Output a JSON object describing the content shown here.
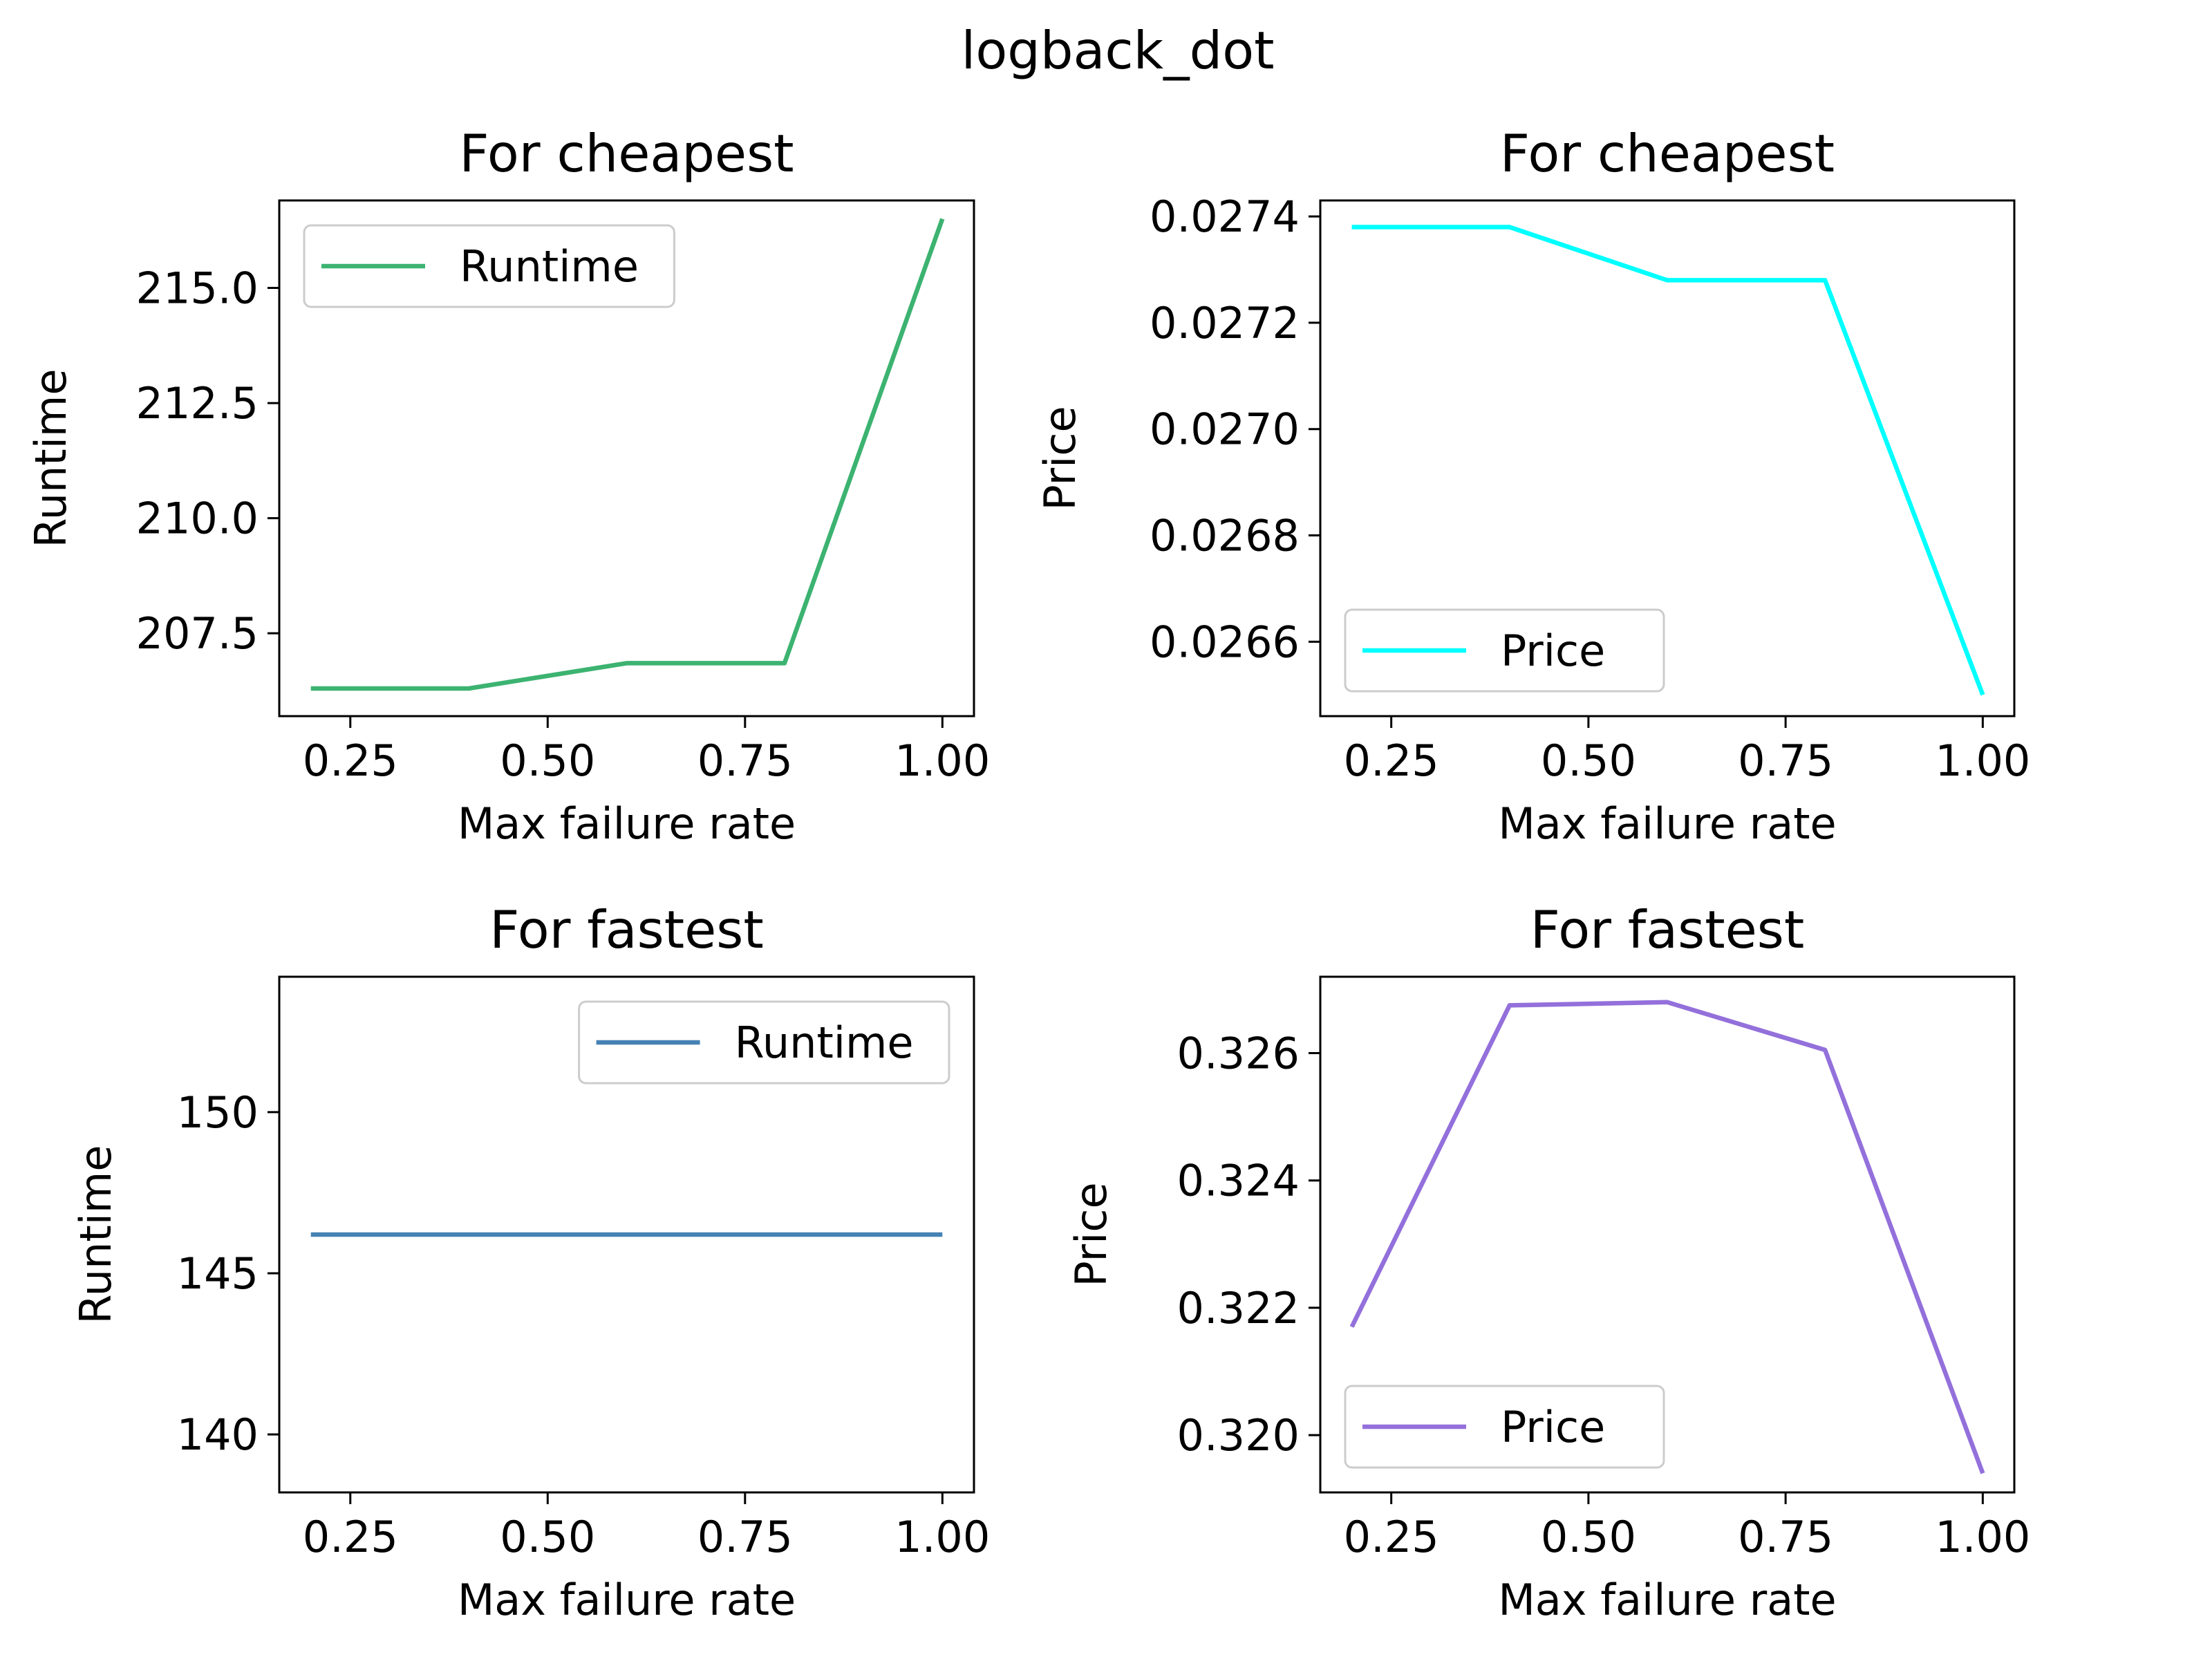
{
  "suptitle": "logback_dot",
  "chart_data": [
    {
      "type": "line",
      "title": "For cheapest",
      "xlabel": "Max failure rate",
      "ylabel": "Runtime",
      "xlim": [
        0.16,
        1.04
      ],
      "ylim": [
        205.7,
        216.9
      ],
      "xticks": [
        0.25,
        0.5,
        0.75,
        1.0
      ],
      "xtick_labels": [
        "0.25",
        "0.50",
        "0.75",
        "1.00"
      ],
      "yticks": [
        207.5,
        210.0,
        212.5,
        215.0
      ],
      "ytick_labels": [
        "207.5",
        "210.0",
        "212.5",
        "215.0"
      ],
      "legend_placement": "upper left",
      "series": [
        {
          "name": "Runtime",
          "color": "#3cb371",
          "x": [
            0.2,
            0.4,
            0.6,
            0.8,
            1.0
          ],
          "y": [
            206.3,
            206.3,
            206.85,
            206.85,
            216.5
          ]
        }
      ]
    },
    {
      "type": "line",
      "title": "For cheapest",
      "xlabel": "Max failure rate",
      "ylabel": "Price",
      "xlim": [
        0.16,
        1.04
      ],
      "ylim": [
        0.02646,
        0.02743
      ],
      "xticks": [
        0.25,
        0.5,
        0.75,
        1.0
      ],
      "xtick_labels": [
        "0.25",
        "0.50",
        "0.75",
        "1.00"
      ],
      "yticks": [
        0.0266,
        0.0268,
        0.027,
        0.0272,
        0.0274
      ],
      "ytick_labels": [
        "0.0266",
        "0.0268",
        "0.0270",
        "0.0272",
        "0.0274"
      ],
      "legend_placement": "lower left",
      "series": [
        {
          "name": "Price",
          "color": "#00ffff",
          "x": [
            0.2,
            0.4,
            0.6,
            0.8,
            1.0
          ],
          "y": [
            0.02738,
            0.02738,
            0.02728,
            0.02728,
            0.0265
          ]
        }
      ]
    },
    {
      "type": "line",
      "title": "For fastest",
      "xlabel": "Max failure rate",
      "ylabel": "Runtime",
      "xlim": [
        0.16,
        1.04
      ],
      "ylim": [
        138.2,
        154.2
      ],
      "xticks": [
        0.25,
        0.5,
        0.75,
        1.0
      ],
      "xtick_labels": [
        "0.25",
        "0.50",
        "0.75",
        "1.00"
      ],
      "yticks": [
        140,
        145,
        150
      ],
      "ytick_labels": [
        "140",
        "145",
        "150"
      ],
      "legend_placement": "upper right",
      "series": [
        {
          "name": "Runtime",
          "color": "#4682b4",
          "x": [
            0.2,
            0.4,
            0.6,
            0.8,
            1.0
          ],
          "y": [
            146.2,
            146.2,
            146.2,
            146.2,
            146.2
          ]
        }
      ]
    },
    {
      "type": "line",
      "title": "For fastest",
      "xlabel": "Max failure rate",
      "ylabel": "Price",
      "xlim": [
        0.16,
        1.04
      ],
      "ylim": [
        0.3191,
        0.3272
      ],
      "xticks": [
        0.25,
        0.5,
        0.75,
        1.0
      ],
      "xtick_labels": [
        "0.25",
        "0.50",
        "0.75",
        "1.00"
      ],
      "yticks": [
        0.32,
        0.322,
        0.324,
        0.326
      ],
      "ytick_labels": [
        "0.320",
        "0.322",
        "0.324",
        "0.326"
      ],
      "legend_placement": "lower left",
      "series": [
        {
          "name": "Price",
          "color": "#9370db",
          "x": [
            0.2,
            0.4,
            0.6,
            0.8,
            1.0
          ],
          "y": [
            0.3217,
            0.32675,
            0.3268,
            0.32605,
            0.3194
          ]
        }
      ]
    }
  ]
}
